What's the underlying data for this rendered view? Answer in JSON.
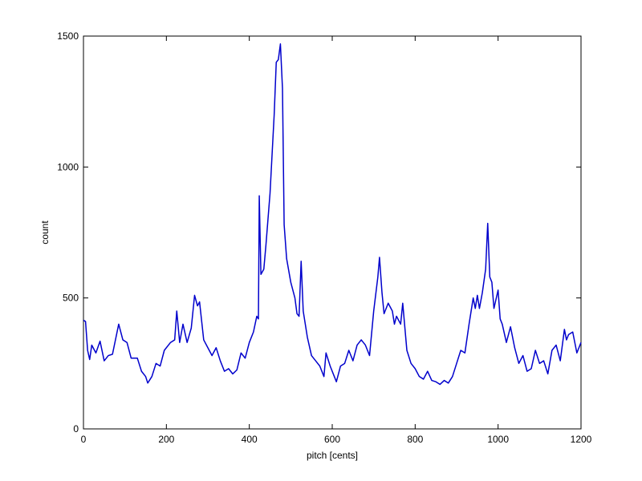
{
  "chart_data": {
    "type": "line",
    "xlabel": "pitch [cents]",
    "ylabel": "count",
    "x": [
      0,
      5,
      10,
      15,
      20,
      30,
      40,
      50,
      60,
      70,
      85,
      95,
      105,
      115,
      130,
      140,
      150,
      155,
      165,
      175,
      185,
      195,
      210,
      220,
      225,
      232,
      240,
      250,
      260,
      268,
      275,
      280,
      290,
      300,
      310,
      320,
      330,
      340,
      350,
      360,
      370,
      380,
      390,
      400,
      410,
      418,
      422,
      424,
      428,
      435,
      440,
      445,
      450,
      460,
      465,
      470,
      475,
      480,
      484,
      490,
      500,
      510,
      515,
      520,
      525,
      530,
      540,
      550,
      560,
      570,
      580,
      585,
      595,
      605,
      610,
      620,
      630,
      640,
      650,
      660,
      670,
      680,
      690,
      700,
      710,
      714,
      720,
      725,
      735,
      745,
      750,
      755,
      765,
      770,
      780,
      790,
      800,
      810,
      820,
      830,
      840,
      850,
      860,
      870,
      880,
      890,
      900,
      910,
      920,
      930,
      940,
      945,
      950,
      955,
      962,
      970,
      975,
      980,
      985,
      990,
      1000,
      1005,
      1010,
      1020,
      1030,
      1040,
      1050,
      1060,
      1070,
      1080,
      1090,
      1100,
      1110,
      1120,
      1130,
      1140,
      1150,
      1160,
      1165,
      1170,
      1180,
      1190,
      1200
    ],
    "series": [
      {
        "name": "count",
        "color": "#0000cc",
        "values": [
          415,
          410,
          300,
          265,
          320,
          290,
          335,
          260,
          280,
          285,
          400,
          340,
          330,
          270,
          270,
          220,
          200,
          175,
          200,
          250,
          240,
          300,
          330,
          340,
          450,
          330,
          400,
          330,
          385,
          510,
          470,
          485,
          340,
          310,
          280,
          310,
          260,
          220,
          230,
          210,
          225,
          290,
          270,
          330,
          370,
          430,
          420,
          890,
          590,
          610,
          700,
          800,
          900,
          1200,
          1400,
          1410,
          1470,
          1300,
          780,
          650,
          560,
          500,
          440,
          430,
          640,
          450,
          350,
          280,
          260,
          240,
          200,
          290,
          240,
          200,
          180,
          240,
          250,
          300,
          260,
          320,
          340,
          320,
          280,
          450,
          580,
          655,
          520,
          440,
          480,
          450,
          400,
          430,
          400,
          480,
          300,
          250,
          230,
          200,
          190,
          220,
          185,
          180,
          170,
          185,
          175,
          200,
          250,
          300,
          290,
          400,
          500,
          460,
          510,
          460,
          520,
          610,
          785,
          580,
          560,
          460,
          530,
          420,
          400,
          330,
          390,
          310,
          250,
          280,
          220,
          230,
          300,
          250,
          260,
          210,
          300,
          320,
          260,
          380,
          340,
          360,
          370,
          290,
          330
        ]
      }
    ],
    "xlim": [
      0,
      1200
    ],
    "ylim": [
      0,
      1500
    ],
    "xticks": [
      0,
      200,
      400,
      600,
      800,
      1000,
      1200
    ],
    "yticks": [
      0,
      500,
      1000,
      1500
    ]
  }
}
